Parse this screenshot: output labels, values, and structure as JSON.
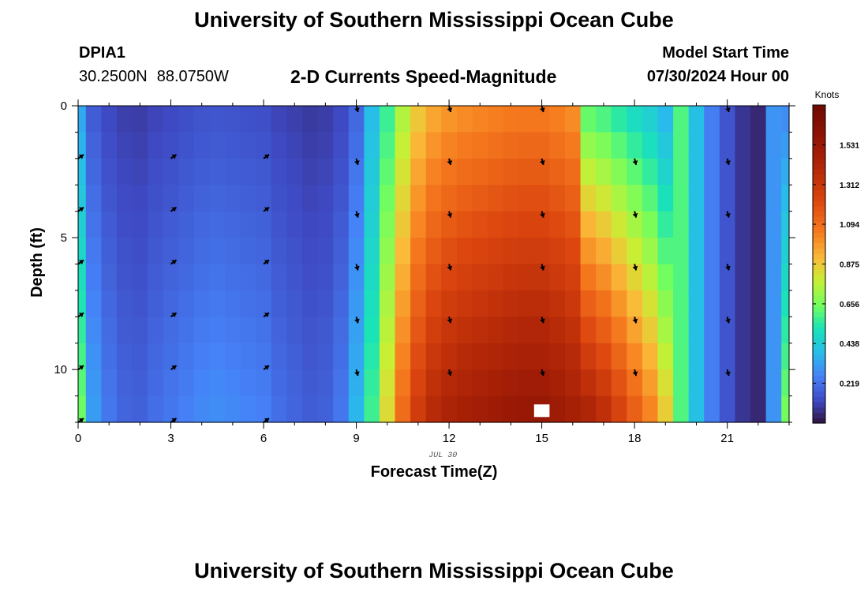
{
  "header": {
    "title": "University of Southern Mississippi Ocean Cube",
    "station": "DPIA1",
    "lat": "30.2500N",
    "lon": "88.0750W",
    "subtitle": "2-D Currents Speed-Magnitude",
    "model_start_label": "Model Start Time",
    "model_start_value": "07/30/2024 Hour 00"
  },
  "footer": {
    "title": "University of Southern Mississippi Ocean Cube"
  },
  "chart_data": {
    "type": "heatmap",
    "title": "2-D Currents Speed-Magnitude",
    "xlabel": "Forecast Time(Z)",
    "ylabel": "Depth (ft)",
    "date_label": "JUL 30",
    "xlim": [
      0,
      23
    ],
    "ylim": [
      0,
      12
    ],
    "x_ticks": [
      0,
      3,
      6,
      9,
      12,
      15,
      18,
      21
    ],
    "y_ticks": [
      0,
      5,
      10
    ],
    "x_step_hours": 0.5,
    "colorbar": {
      "label": "Knots",
      "range": [
        0,
        1.75
      ],
      "ticks": [
        "1.531",
        "1.312",
        "1.094",
        "0.875",
        "0.656",
        "0.438",
        "0.219"
      ],
      "tick_values": [
        1.531,
        1.312,
        1.094,
        0.875,
        0.656,
        0.438,
        0.219
      ]
    },
    "missing_cell": {
      "x": 15,
      "depth": 11.8
    },
    "time_profile": [
      {
        "t": 0.0,
        "s": 0.6
      },
      {
        "t": 0.5,
        "s": 0.3
      },
      {
        "t": 1.0,
        "s": 0.22
      },
      {
        "t": 1.5,
        "s": 0.18
      },
      {
        "t": 2.0,
        "s": 0.17
      },
      {
        "t": 2.5,
        "s": 0.2
      },
      {
        "t": 3.0,
        "s": 0.22
      },
      {
        "t": 3.5,
        "s": 0.24
      },
      {
        "t": 4.0,
        "s": 0.26
      },
      {
        "t": 4.5,
        "s": 0.27
      },
      {
        "t": 5.0,
        "s": 0.26
      },
      {
        "t": 5.5,
        "s": 0.25
      },
      {
        "t": 6.0,
        "s": 0.24
      },
      {
        "t": 6.5,
        "s": 0.2
      },
      {
        "t": 7.0,
        "s": 0.18
      },
      {
        "t": 7.5,
        "s": 0.16
      },
      {
        "t": 8.0,
        "s": 0.17
      },
      {
        "t": 8.5,
        "s": 0.22
      },
      {
        "t": 9.0,
        "s": 0.35
      },
      {
        "t": 9.5,
        "s": 0.55
      },
      {
        "t": 10.0,
        "s": 0.8
      },
      {
        "t": 10.5,
        "s": 1.05
      },
      {
        "t": 11.0,
        "s": 1.2
      },
      {
        "t": 11.5,
        "s": 1.3
      },
      {
        "t": 12.0,
        "s": 1.35
      },
      {
        "t": 12.5,
        "s": 1.38
      },
      {
        "t": 13.0,
        "s": 1.4
      },
      {
        "t": 13.5,
        "s": 1.42
      },
      {
        "t": 14.0,
        "s": 1.44
      },
      {
        "t": 14.5,
        "s": 1.45
      },
      {
        "t": 15.0,
        "s": 1.45
      },
      {
        "t": 15.5,
        "s": 1.42
      },
      {
        "t": 16.0,
        "s": 1.38
      },
      {
        "t": 16.5,
        "s": 1.32
      },
      {
        "t": 17.0,
        "s": 1.25
      },
      {
        "t": 17.5,
        "s": 1.15
      },
      {
        "t": 18.0,
        "s": 1.05
      },
      {
        "t": 18.5,
        "s": 0.95
      },
      {
        "t": 19.0,
        "s": 0.8
      },
      {
        "t": 19.5,
        "s": 0.6
      },
      {
        "t": 20.0,
        "s": 0.4
      },
      {
        "t": 20.5,
        "s": 0.25
      },
      {
        "t": 21.0,
        "s": 0.15
      },
      {
        "t": 21.5,
        "s": 0.08
      },
      {
        "t": 22.0,
        "s": 0.05
      },
      {
        "t": 22.5,
        "s": 0.3
      },
      {
        "t": 23.0,
        "s": 0.6
      }
    ],
    "vectors": [
      {
        "t": 0,
        "depth": 2,
        "dir": "NE"
      },
      {
        "t": 0,
        "depth": 4,
        "dir": "NE"
      },
      {
        "t": 0,
        "depth": 6,
        "dir": "NE"
      },
      {
        "t": 0,
        "depth": 8,
        "dir": "NE"
      },
      {
        "t": 0,
        "depth": 10,
        "dir": "NE"
      },
      {
        "t": 0,
        "depth": 12,
        "dir": "NE"
      },
      {
        "t": 3,
        "depth": 2,
        "dir": "NE"
      },
      {
        "t": 3,
        "depth": 4,
        "dir": "NE"
      },
      {
        "t": 3,
        "depth": 6,
        "dir": "NE"
      },
      {
        "t": 3,
        "depth": 8,
        "dir": "NE"
      },
      {
        "t": 3,
        "depth": 10,
        "dir": "NE"
      },
      {
        "t": 3,
        "depth": 12,
        "dir": "NE"
      },
      {
        "t": 6,
        "depth": 2,
        "dir": "NE"
      },
      {
        "t": 6,
        "depth": 4,
        "dir": "NE"
      },
      {
        "t": 6,
        "depth": 6,
        "dir": "NE"
      },
      {
        "t": 6,
        "depth": 8,
        "dir": "NE"
      },
      {
        "t": 6,
        "depth": 10,
        "dir": "NE"
      },
      {
        "t": 6,
        "depth": 12,
        "dir": "NE"
      },
      {
        "t": 9,
        "depth": 0,
        "dir": "S"
      },
      {
        "t": 9,
        "depth": 2,
        "dir": "S"
      },
      {
        "t": 9,
        "depth": 4,
        "dir": "S"
      },
      {
        "t": 9,
        "depth": 6,
        "dir": "S"
      },
      {
        "t": 9,
        "depth": 8,
        "dir": "S"
      },
      {
        "t": 9,
        "depth": 10,
        "dir": "S"
      },
      {
        "t": 12,
        "depth": 0,
        "dir": "S"
      },
      {
        "t": 12,
        "depth": 2,
        "dir": "S"
      },
      {
        "t": 12,
        "depth": 4,
        "dir": "S"
      },
      {
        "t": 12,
        "depth": 6,
        "dir": "S"
      },
      {
        "t": 12,
        "depth": 8,
        "dir": "S"
      },
      {
        "t": 12,
        "depth": 10,
        "dir": "S"
      },
      {
        "t": 15,
        "depth": 0,
        "dir": "S"
      },
      {
        "t": 15,
        "depth": 2,
        "dir": "S"
      },
      {
        "t": 15,
        "depth": 4,
        "dir": "S"
      },
      {
        "t": 15,
        "depth": 6,
        "dir": "S"
      },
      {
        "t": 15,
        "depth": 8,
        "dir": "S"
      },
      {
        "t": 15,
        "depth": 10,
        "dir": "S"
      },
      {
        "t": 18,
        "depth": 2,
        "dir": "S"
      },
      {
        "t": 18,
        "depth": 4,
        "dir": "S"
      },
      {
        "t": 18,
        "depth": 6,
        "dir": "S"
      },
      {
        "t": 18,
        "depth": 8,
        "dir": "S"
      },
      {
        "t": 18,
        "depth": 10,
        "dir": "S"
      },
      {
        "t": 21,
        "depth": 0,
        "dir": "S"
      },
      {
        "t": 21,
        "depth": 2,
        "dir": "S"
      },
      {
        "t": 21,
        "depth": 4,
        "dir": "S"
      },
      {
        "t": 21,
        "depth": 6,
        "dir": "S"
      },
      {
        "t": 21,
        "depth": 8,
        "dir": "S"
      },
      {
        "t": 21,
        "depth": 10,
        "dir": "S"
      }
    ]
  }
}
